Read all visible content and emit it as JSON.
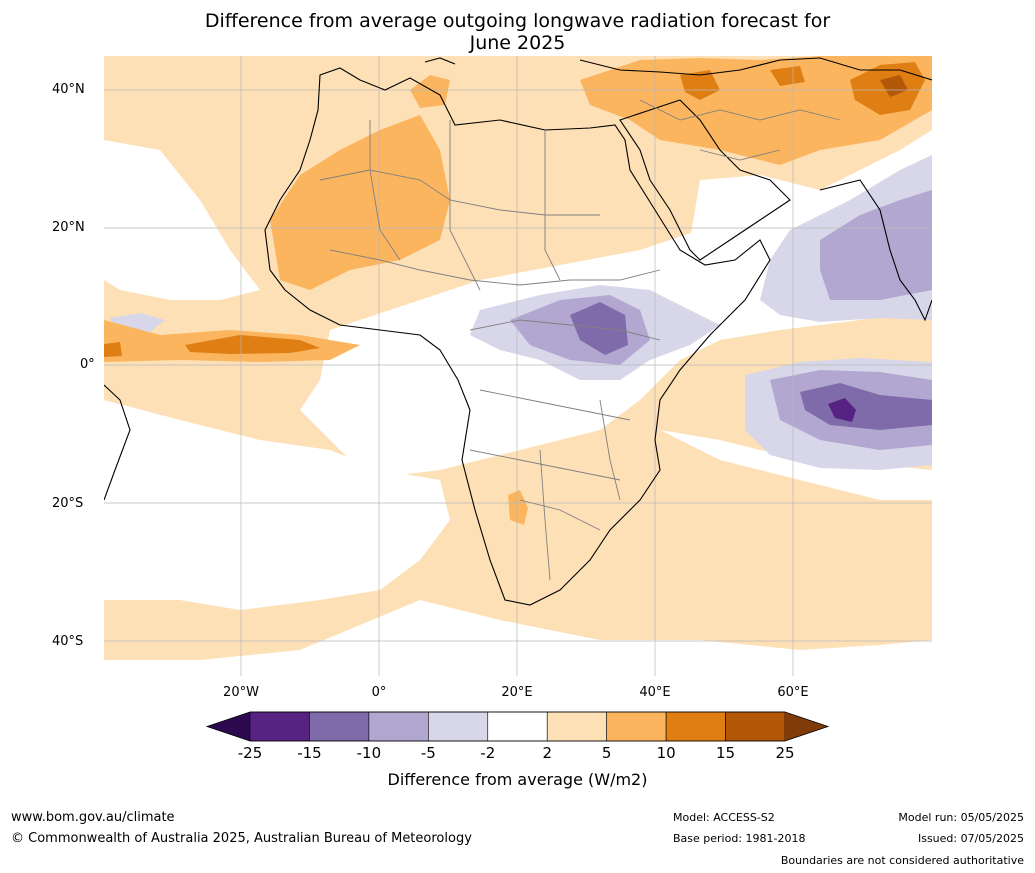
{
  "title_line1": "Difference from average outgoing longwave radiation forecast for",
  "title_line2": "June 2025",
  "lat_labels": [
    "40°N",
    "20°N",
    "0°",
    "20°S",
    "40°S"
  ],
  "lon_labels": [
    "20°W",
    "0°",
    "20°E",
    "40°E",
    "60°E"
  ],
  "colorbar": {
    "ticks": [
      "-25",
      "-15",
      "-10",
      "-5",
      "-2",
      "2",
      "5",
      "10",
      "15",
      "25"
    ],
    "label": "Difference from average (W/m2)",
    "colors": [
      "#2d0a4f",
      "#562382",
      "#7f6ba9",
      "#b1a7d0",
      "#d8d7e9",
      "#ffffff",
      "#fde0b6",
      "#fbb55e",
      "#df7f13",
      "#b35807",
      "#7f3b08"
    ]
  },
  "footer": {
    "url": "www.bom.gov.au/climate",
    "copyright": "© Commonwealth of Australia 2025, Australian Bureau of Meteorology",
    "model": "Model: ACCESS-S2",
    "base_period": "Base period: 1981-2018",
    "model_run": "Model run: 05/05/2025",
    "issued": "Issued: 07/05/2025",
    "disclaimer": "Boundaries are not considered authoritative"
  }
}
